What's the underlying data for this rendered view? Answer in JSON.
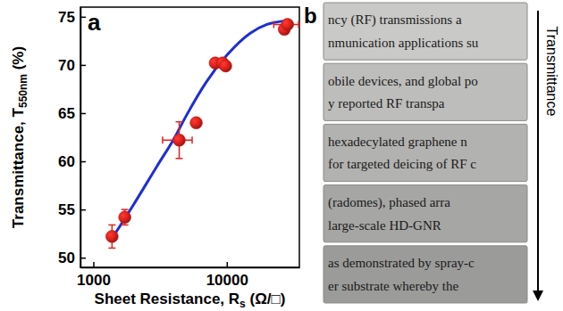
{
  "chart_data": {
    "type": "scatter",
    "panel": "a",
    "xlabel": [
      "Sheet Resistance, R",
      "s",
      " (Ω/□)"
    ],
    "ylabel": [
      "Transmittance, T",
      "550nm",
      " (%)"
    ],
    "log": "x",
    "xlim": [
      800,
      35000
    ],
    "xticks": [
      1000,
      10000
    ],
    "ylim": [
      49,
      76
    ],
    "yticks": [
      50,
      55,
      60,
      65,
      70,
      75
    ],
    "series": [
      {
        "type": "scatter",
        "color": "#e3211c",
        "marker": "circle",
        "x": [
          1380,
          1720,
          4400,
          5900,
          8200,
          9300,
          9800,
          27000,
          28500
        ],
        "values": [
          52.2,
          54.2,
          62.2,
          64.0,
          70.2,
          70.2,
          69.9,
          73.7,
          74.2
        ],
        "y_error": [
          1.2,
          0.8,
          1.9,
          0.4,
          0.3,
          0.3,
          0.4,
          0.5,
          0.4
        ],
        "x_error": [
          0,
          0,
          1100,
          0,
          0,
          0,
          0,
          0,
          6000
        ]
      },
      {
        "type": "line",
        "color": "#1c2fd6",
        "line_style": "solid",
        "x": [
          1380,
          2000,
          3000,
          4000,
          5000,
          7000,
          10000,
          15000,
          20000,
          28000
        ],
        "values": [
          52.0,
          55.5,
          59.5,
          62.3,
          64.8,
          68.2,
          71.0,
          73.3,
          74.2,
          74.6
        ]
      }
    ]
  },
  "panel_b": {
    "panel": "b",
    "arrow_label": "Transmittance",
    "slides": [
      [
        "ncy (RF) transmissions a",
        "nmunication applications su"
      ],
      [
        "obile devices, and global po",
        "y reported RF transpa"
      ],
      [
        "hexadecylated graphene n",
        "for targeted deicing of RF c"
      ],
      [
        "(radomes), phased arra",
        "large-scale HD-GNR"
      ],
      [
        "as demonstrated by spray-c",
        "er substrate whereby the"
      ]
    ]
  }
}
